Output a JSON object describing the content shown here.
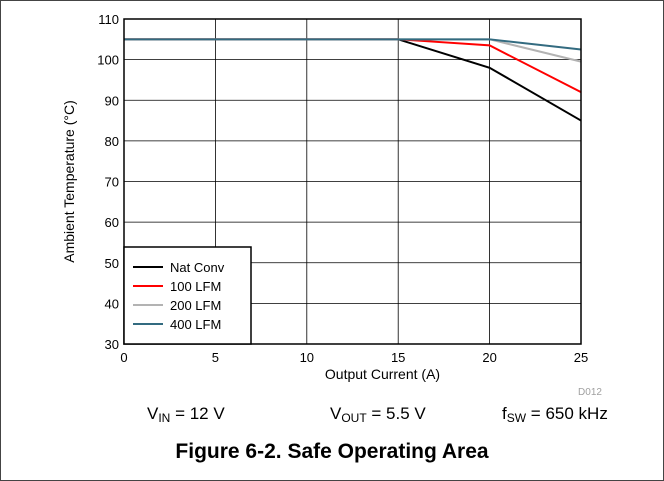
{
  "chart_data": {
    "type": "line",
    "xlabel": "Output Current (A)",
    "ylabel": "Ambient Temperature (°C)",
    "xlim": [
      0,
      25
    ],
    "ylim": [
      30,
      110
    ],
    "xticks": [
      0,
      5,
      10,
      15,
      20,
      25
    ],
    "yticks": [
      30,
      40,
      50,
      60,
      70,
      80,
      90,
      100,
      110
    ],
    "grid": true,
    "legend_position": "bottom-left",
    "watermark": "D012",
    "series": [
      {
        "name": "Nat Conv",
        "color": "#000000",
        "x": [
          0,
          15,
          20,
          25
        ],
        "y": [
          105,
          105,
          98,
          85
        ]
      },
      {
        "name": "100 LFM",
        "color": "#ff0000",
        "x": [
          0,
          15,
          20,
          25
        ],
        "y": [
          105,
          105,
          103.5,
          92
        ]
      },
      {
        "name": "200 LFM",
        "color": "#b3b3b3",
        "x": [
          0,
          15,
          20,
          25
        ],
        "y": [
          105,
          105,
          105,
          99.5
        ]
      },
      {
        "name": "400 LFM",
        "color": "#336b80",
        "x": [
          0,
          15,
          20,
          25
        ],
        "y": [
          105,
          105,
          105,
          102.5
        ]
      }
    ]
  },
  "conditions": {
    "vin": {
      "prefix": "V",
      "sub": "IN",
      "suffix": " = 12 V"
    },
    "vout": {
      "prefix": "V",
      "sub": "OUT",
      "suffix": " = 5.5 V"
    },
    "fsw": {
      "prefix": "f",
      "sub": "SW",
      "suffix": " = 650 kHz"
    }
  },
  "caption": "Figure 6-2. Safe Operating Area"
}
